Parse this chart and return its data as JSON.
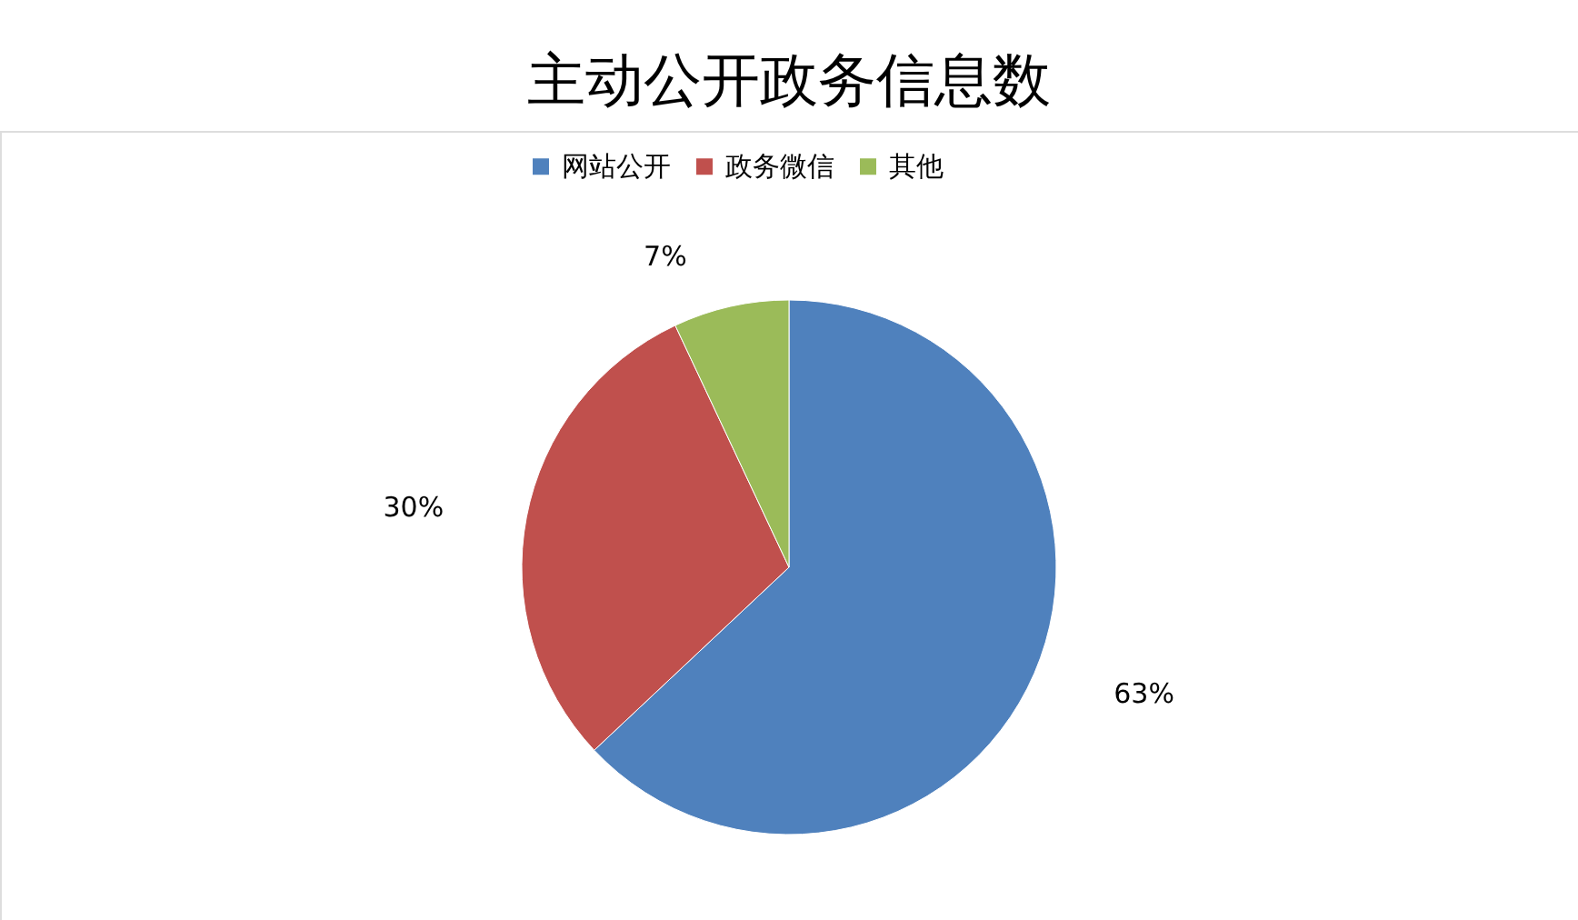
{
  "chart_data": {
    "type": "pie",
    "title": "主动公开政务信息数",
    "categories": [
      "网站公开",
      "政务微信",
      "其他"
    ],
    "values": [
      63,
      30,
      7
    ],
    "colors": [
      "#4f81bd",
      "#c0504d",
      "#9bbb59"
    ],
    "value_labels": [
      "63%",
      "30%",
      "7%"
    ],
    "legend": "top"
  }
}
